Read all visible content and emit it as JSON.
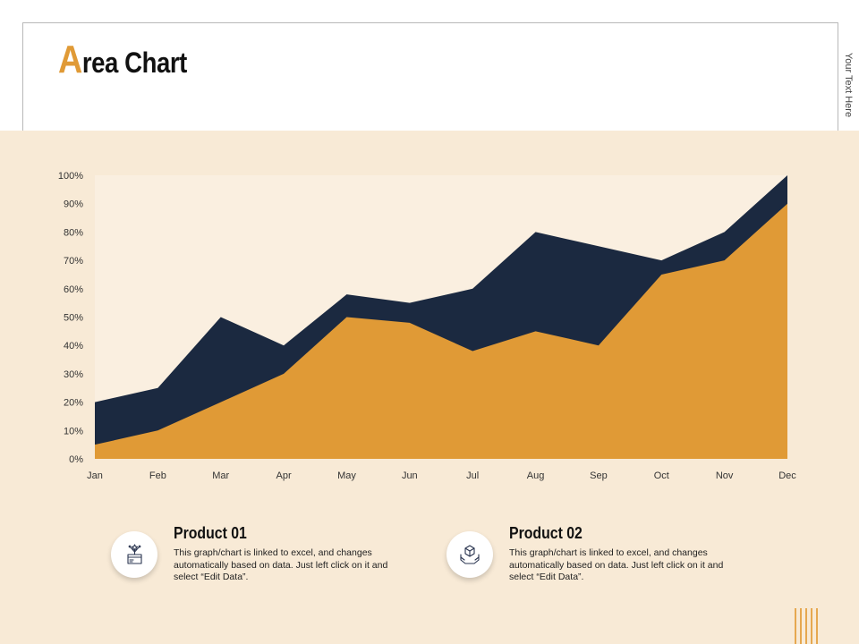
{
  "title": {
    "first_letter": "A",
    "rest": "rea Chart"
  },
  "side_text": "Your Text Here",
  "colors": {
    "panel_bg": "#f8ead6",
    "product01": "#e09a36",
    "product02": "#1b2940",
    "accent": "#e09a36",
    "stripes": "#e6a850"
  },
  "chart_data": {
    "type": "area",
    "stacked": false,
    "categories": [
      "Jan",
      "Feb",
      "Mar",
      "Apr",
      "May",
      "Jun",
      "Jul",
      "Aug",
      "Sep",
      "Oct",
      "Nov",
      "Dec"
    ],
    "y_ticks": [
      "0%",
      "10%",
      "20%",
      "30%",
      "40%",
      "50%",
      "60%",
      "70%",
      "80%",
      "90%",
      "100%"
    ],
    "ylim": [
      0,
      100
    ],
    "series": [
      {
        "name": "Product 02",
        "values": [
          20,
          25,
          50,
          40,
          58,
          55,
          60,
          80,
          75,
          70,
          80,
          100
        ]
      },
      {
        "name": "Product 01",
        "values": [
          5,
          10,
          20,
          30,
          50,
          48,
          38,
          45,
          40,
          65,
          70,
          90
        ]
      }
    ],
    "grid": false,
    "legend": "bottom"
  },
  "products": [
    {
      "title": "Product 01",
      "icon": "gift-box-icon",
      "description": "This graph/chart is linked to excel, and changes automatically based on data. Just left click on it and select “Edit Data”."
    },
    {
      "title": "Product 02",
      "icon": "hands-package-icon",
      "description": "This graph/chart is linked to excel, and changes automatically based on data. Just left click on it and select “Edit Data”."
    }
  ]
}
